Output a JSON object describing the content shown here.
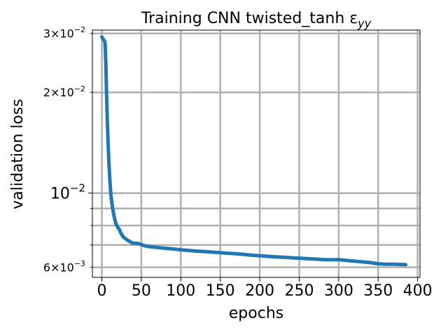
{
  "chart_data": {
    "type": "line",
    "title": "Training CNN twisted_tanh ε",
    "title_subscript": "yy",
    "xlabel": "epochs",
    "ylabel": "validation loss",
    "xlim": [
      -12,
      403
    ],
    "ylim": [
      0.0056,
      0.0307
    ],
    "yscale": "log",
    "grid": true,
    "xticks": [
      0,
      50,
      100,
      150,
      200,
      250,
      300,
      350,
      400
    ],
    "xtick_labels": [
      "0",
      "50",
      "100",
      "150",
      "200",
      "250",
      "300",
      "350",
      "400"
    ],
    "yticks_major": [
      {
        "value": 0.01,
        "mantissa": "",
        "exponent": "−2"
      }
    ],
    "yticks_minor": [
      {
        "value": 0.006,
        "mantissa": "6",
        "exponent": "−3",
        "labeled": true
      },
      {
        "value": 0.007,
        "mantissa": "",
        "exponent": "",
        "labeled": false
      },
      {
        "value": 0.008,
        "mantissa": "",
        "exponent": "",
        "labeled": false
      },
      {
        "value": 0.009,
        "mantissa": "",
        "exponent": "",
        "labeled": false
      },
      {
        "value": 0.02,
        "mantissa": "2",
        "exponent": "−2",
        "labeled": true
      },
      {
        "value": 0.03,
        "mantissa": "3",
        "exponent": "−2",
        "labeled": true
      }
    ],
    "series": [
      {
        "color": "#1f77b4",
        "x": [
          0,
          2,
          4,
          5,
          6,
          7,
          8,
          9,
          10,
          11,
          12,
          14,
          16,
          18,
          20,
          22,
          24,
          27,
          30,
          33,
          36,
          40,
          45,
          50,
          55,
          60,
          70,
          80,
          90,
          100,
          110,
          120,
          130,
          140,
          150,
          160,
          170,
          180,
          190,
          200,
          210,
          220,
          230,
          240,
          250,
          260,
          270,
          280,
          290,
          300,
          310,
          320,
          330,
          340,
          350,
          360,
          370,
          380,
          385
        ],
        "y": [
          0.0293,
          0.0288,
          0.0283,
          0.0244,
          0.0195,
          0.0163,
          0.0138,
          0.0122,
          0.0111,
          0.0102,
          0.0096,
          0.0089,
          0.0084,
          0.0081,
          0.0079,
          0.0078,
          0.0076,
          0.0074,
          0.0073,
          0.00722,
          0.00715,
          0.00708,
          0.00708,
          0.00702,
          0.00695,
          0.00692,
          0.00688,
          0.00684,
          0.00681,
          0.00677,
          0.00674,
          0.00671,
          0.00669,
          0.00666,
          0.00664,
          0.00661,
          0.00659,
          0.00656,
          0.00652,
          0.0065,
          0.00647,
          0.00645,
          0.00643,
          0.00641,
          0.00639,
          0.00637,
          0.00635,
          0.00633,
          0.00632,
          0.00633,
          0.00629,
          0.00626,
          0.00623,
          0.0062,
          0.00615,
          0.00613,
          0.00613,
          0.00612,
          0.00611
        ]
      }
    ]
  }
}
